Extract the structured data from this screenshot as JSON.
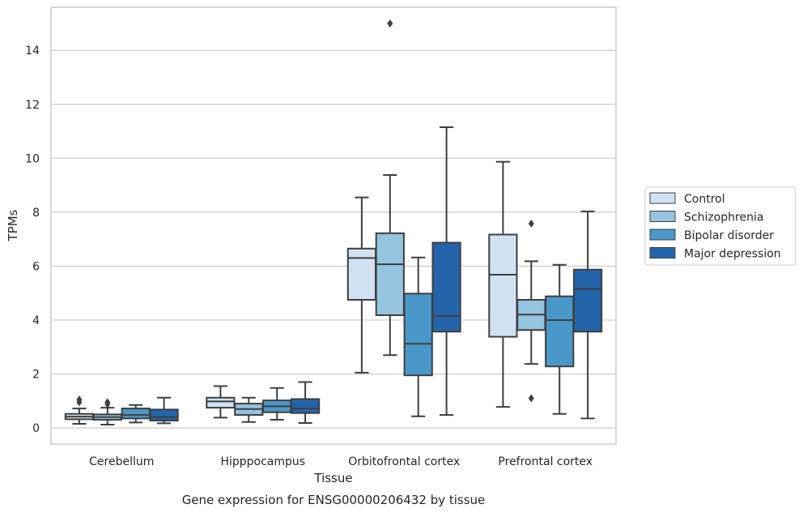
{
  "chart_data": {
    "type": "boxplot",
    "xlabel": "Tissue",
    "ylabel": "TPMs",
    "caption": "Gene expression for ENSG00000206432 by tissue",
    "ylim": [
      -0.6,
      15.6
    ],
    "yticks": [
      0,
      2,
      4,
      6,
      8,
      10,
      12,
      14
    ],
    "grid": "horizontal",
    "legend_position": "right",
    "categories": [
      "Cerebellum",
      "Hipppocampus",
      "Orbitofrontal cortex",
      "Prefrontal cortex"
    ],
    "series": [
      {
        "name": "Control",
        "color": "#d0e1f2",
        "boxes": [
          {
            "whisker_low": 0.15,
            "q1": 0.32,
            "median": 0.42,
            "q3": 0.52,
            "whisker_high": 0.72,
            "outliers": [
              0.95,
              1.05
            ]
          },
          {
            "whisker_low": 0.38,
            "q1": 0.75,
            "median": 0.98,
            "q3": 1.12,
            "whisker_high": 1.55,
            "outliers": []
          },
          {
            "whisker_low": 2.05,
            "q1": 4.75,
            "median": 6.3,
            "q3": 6.65,
            "whisker_high": 8.55,
            "outliers": []
          },
          {
            "whisker_low": 0.78,
            "q1": 3.38,
            "median": 5.68,
            "q3": 7.17,
            "whisker_high": 9.87,
            "outliers": []
          }
        ]
      },
      {
        "name": "Schizophrenia",
        "color": "#94c4df",
        "boxes": [
          {
            "whisker_low": 0.12,
            "q1": 0.3,
            "median": 0.4,
            "q3": 0.5,
            "whisker_high": 0.75,
            "outliers": [
              0.88,
              0.95
            ]
          },
          {
            "whisker_low": 0.22,
            "q1": 0.48,
            "median": 0.7,
            "q3": 0.9,
            "whisker_high": 1.12,
            "outliers": []
          },
          {
            "whisker_low": 2.7,
            "q1": 4.18,
            "median": 6.07,
            "q3": 7.22,
            "whisker_high": 9.38,
            "outliers": [
              15.0
            ]
          },
          {
            "whisker_low": 2.37,
            "q1": 3.63,
            "median": 4.2,
            "q3": 4.75,
            "whisker_high": 6.18,
            "outliers": [
              7.58,
              1.1
            ]
          }
        ]
      },
      {
        "name": "Bipolar disorder",
        "color": "#4a98c9",
        "boxes": [
          {
            "whisker_low": 0.2,
            "q1": 0.35,
            "median": 0.48,
            "q3": 0.72,
            "whisker_high": 0.85,
            "outliers": []
          },
          {
            "whisker_low": 0.3,
            "q1": 0.58,
            "median": 0.8,
            "q3": 1.02,
            "whisker_high": 1.48,
            "outliers": []
          },
          {
            "whisker_low": 0.43,
            "q1": 1.95,
            "median": 3.12,
            "q3": 4.98,
            "whisker_high": 6.32,
            "outliers": []
          },
          {
            "whisker_low": 0.52,
            "q1": 2.28,
            "median": 4.0,
            "q3": 4.88,
            "whisker_high": 6.05,
            "outliers": []
          }
        ]
      },
      {
        "name": "Major depression",
        "color": "#2464ab",
        "boxes": [
          {
            "whisker_low": 0.17,
            "q1": 0.27,
            "median": 0.4,
            "q3": 0.68,
            "whisker_high": 1.12,
            "outliers": []
          },
          {
            "whisker_low": 0.18,
            "q1": 0.55,
            "median": 0.72,
            "q3": 1.07,
            "whisker_high": 1.7,
            "outliers": []
          },
          {
            "whisker_low": 0.48,
            "q1": 3.57,
            "median": 4.15,
            "q3": 6.87,
            "whisker_high": 11.15,
            "outliers": []
          },
          {
            "whisker_low": 0.35,
            "q1": 3.57,
            "median": 5.15,
            "q3": 5.87,
            "whisker_high": 8.03,
            "outliers": []
          }
        ]
      }
    ]
  }
}
